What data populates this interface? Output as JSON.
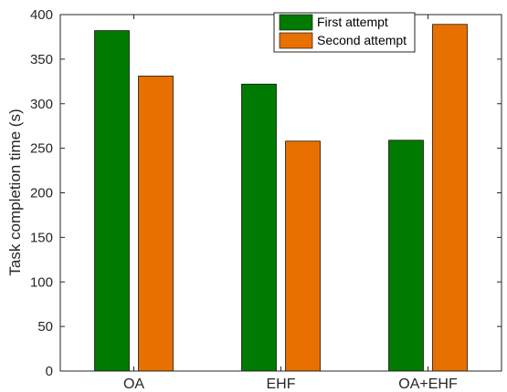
{
  "chart_data": {
    "type": "bar",
    "categories": [
      "OA",
      "EHF",
      "OA+EHF"
    ],
    "series": [
      {
        "name": "First attempt",
        "values": [
          382,
          322,
          259
        ],
        "color": "#007a00"
      },
      {
        "name": "Second attempt",
        "values": [
          331,
          258,
          389
        ],
        "color": "#e87000"
      }
    ],
    "title": "",
    "xlabel": "",
    "ylabel": "Task completion time (s)",
    "ylim": [
      0,
      400
    ],
    "yticks": [
      0,
      50,
      100,
      150,
      200,
      250,
      300,
      350,
      400
    ],
    "legend_position": "top-right",
    "grid": false
  }
}
